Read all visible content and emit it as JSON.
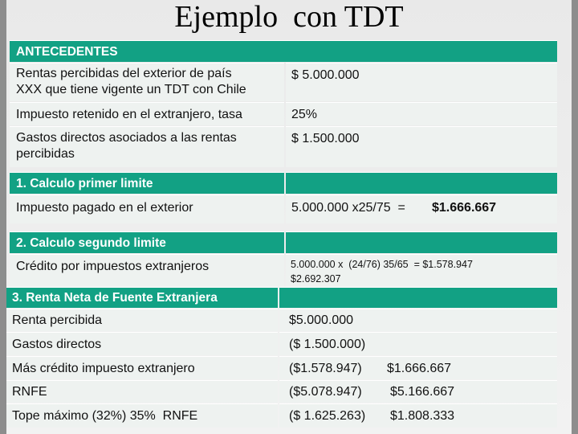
{
  "title": "Ejemplo  con TDT",
  "antecedentes": {
    "header": "ANTECEDENTES",
    "rows": [
      {
        "label_line1": "Rentas percibidas del exterior de país",
        "label_line2": "XXX que tiene vigente un TDT con Chile",
        "value": "$ 5.000.000"
      },
      {
        "label_line1": "Impuesto retenido en el extranjero, tasa",
        "label_line2": "",
        "value": "25%"
      },
      {
        "label_line1": "Gastos directos asociados a las rentas",
        "label_line2": "percibidas",
        "value": "$ 1.500.000"
      }
    ]
  },
  "limite1": {
    "header": "1. Calculo primer limite",
    "label": "Impuesto pagado en el exterior",
    "formula": "5.000.000 x25/75  =",
    "result": "$1.666.667"
  },
  "limite2": {
    "header": "2. Calculo segundo limite",
    "label": "Crédito por impuestos extranjeros",
    "line1": "5.000.000 x  (24/76) 35/65  = $1.578.947",
    "line2": "$2.692.307"
  },
  "rnfe": {
    "header": "3. Renta Neta de Fuente Extranjera",
    "rows": [
      {
        "label": "Renta percibida",
        "v1": "$5.000.000",
        "v2": ""
      },
      {
        "label": "Gastos directos",
        "v1": "($ 1.500.000)",
        "v2": ""
      },
      {
        "label": "Más crédito impuesto extranjero",
        "v1": "($1.578.947)",
        "v2": "$1.666.667"
      },
      {
        "label": "RNFE",
        "v1": "($5.078.947)",
        "v2": "$5.166.667"
      },
      {
        "label": "Tope máximo (32%) 35%  RNFE",
        "v1": "($ 1.625.263)",
        "v2": "$1.808.333"
      }
    ]
  }
}
